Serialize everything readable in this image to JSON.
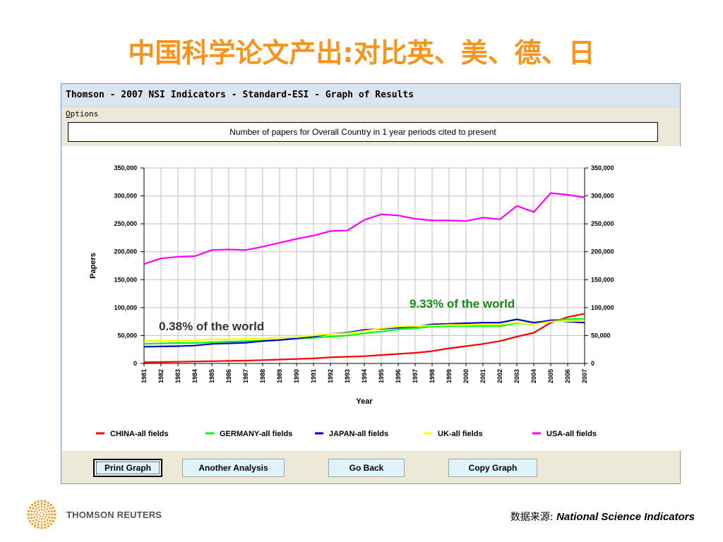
{
  "slide": {
    "title": "中国科学论文产出:对比英、美、德、日",
    "brand": "THOMSON REUTERS",
    "source_label": "数据来源:",
    "source_value": "National Science Indicators"
  },
  "window": {
    "title": "Thomson - 2007 NSI Indicators - Standard-ESI - Graph of Results",
    "menu": [
      "Options"
    ],
    "heading": "Number of papers for Overall Country in 1 year periods cited to present",
    "buttons": [
      {
        "label": "Print Graph",
        "active": true
      },
      {
        "label": "Another Analysis",
        "active": false
      },
      {
        "label": "Go Back",
        "active": false
      },
      {
        "label": "Copy Graph",
        "active": false
      }
    ]
  },
  "chart_data": {
    "type": "line",
    "title": "",
    "xlabel": "Year",
    "ylabel": "Papers",
    "ylim": [
      0,
      350000
    ],
    "yticks": [
      0,
      50000,
      100000,
      150000,
      200000,
      250000,
      300000,
      350000
    ],
    "ytick_labels": [
      "0",
      "50,000",
      "100,000",
      "150,000",
      "200,000",
      "250,000",
      "300,000",
      "350,000"
    ],
    "grid": true,
    "legend_position": "bottom",
    "categories": [
      "1981",
      "1982",
      "1983",
      "1984",
      "1985",
      "1986",
      "1987",
      "1988",
      "1989",
      "1990",
      "1991",
      "1992",
      "1993",
      "1994",
      "1995",
      "1996",
      "1997",
      "1998",
      "1999",
      "2000",
      "2001",
      "2002",
      "2003",
      "2004",
      "2005",
      "2006",
      "2007"
    ],
    "series": [
      {
        "name": "CHINA-all fields",
        "color": "#ff0000",
        "values": [
          2000,
          2500,
          3000,
          3500,
          4000,
          4500,
          5000,
          6000,
          7000,
          8000,
          9000,
          11000,
          12000,
          13000,
          15000,
          17000,
          19000,
          22000,
          27000,
          31000,
          35000,
          40000,
          48000,
          55000,
          73000,
          83000,
          89000
        ]
      },
      {
        "name": "GERMANY-all fields",
        "color": "#00ff00",
        "values": [
          35000,
          36000,
          36500,
          36500,
          38000,
          39000,
          40000,
          41000,
          42000,
          44000,
          46000,
          48000,
          50000,
          54000,
          57000,
          61000,
          63000,
          66000,
          67000,
          67000,
          67000,
          67000,
          72000,
          70000,
          78000,
          79000,
          80000
        ]
      },
      {
        "name": "JAPAN-all fields",
        "color": "#0000cc",
        "values": [
          30000,
          30500,
          31000,
          32000,
          35000,
          36000,
          37000,
          40000,
          42000,
          45000,
          48000,
          53000,
          55000,
          60000,
          62000,
          64000,
          66000,
          70000,
          71000,
          72000,
          73000,
          73000,
          79000,
          73000,
          77000,
          75000,
          73000
        ]
      },
      {
        "name": "UK-all fields",
        "color": "#ffff00",
        "values": [
          40000,
          41000,
          41000,
          41500,
          43000,
          43500,
          44000,
          45000,
          46000,
          47000,
          50000,
          53000,
          54000,
          58000,
          63000,
          66000,
          67000,
          68000,
          69000,
          69000,
          70000,
          70000,
          73000,
          70000,
          75000,
          76000,
          76000
        ]
      },
      {
        "name": "USA-all fields",
        "color": "#ff00ff",
        "values": [
          178000,
          188000,
          191000,
          192000,
          203000,
          204000,
          203000,
          209000,
          216000,
          223000,
          229000,
          237000,
          238000,
          257000,
          267000,
          265000,
          259000,
          256000,
          256000,
          255000,
          261000,
          258000,
          282000,
          271000,
          305000,
          302000,
          297000
        ]
      }
    ],
    "annotations": [
      {
        "text": "0.38% of the world",
        "color": "#333333"
      },
      {
        "text": "9.33% of the world",
        "color": "#138a13"
      }
    ]
  }
}
